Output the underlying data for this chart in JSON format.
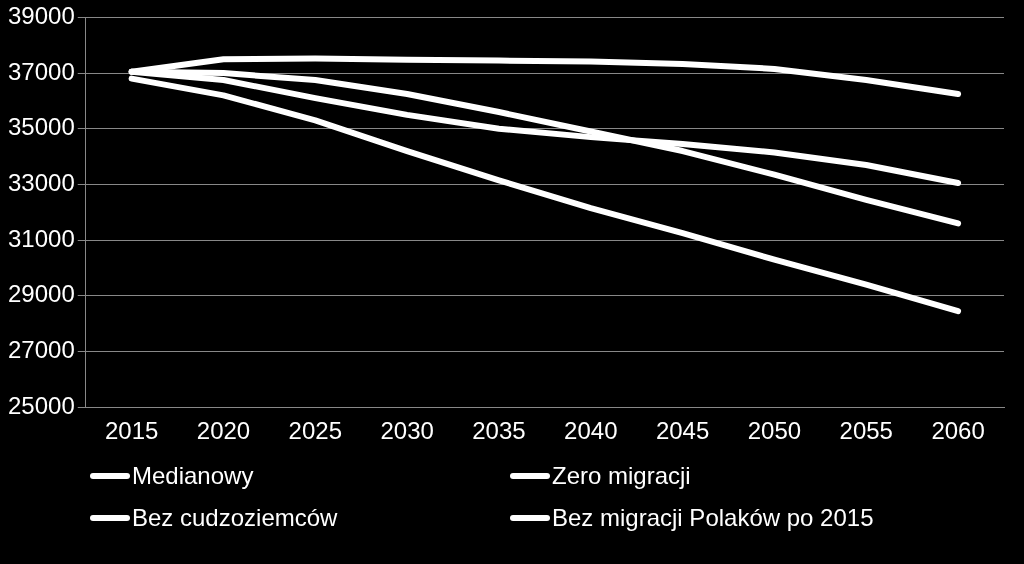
{
  "chart_data": {
    "type": "line",
    "categories": [
      "2015",
      "2020",
      "2025",
      "2030",
      "2035",
      "2040",
      "2045",
      "2050",
      "2055",
      "2060"
    ],
    "series": [
      {
        "name": "Medianowy",
        "color": "#ffffff",
        "values": [
          37050,
          37500,
          37520,
          37480,
          37450,
          37420,
          37330,
          37150,
          36750,
          36250
        ]
      },
      {
        "name": "Zero migracji",
        "color": "#ffffff",
        "values": [
          37050,
          37000,
          36750,
          36250,
          35600,
          34900,
          34200,
          33350,
          32450,
          31600
        ]
      },
      {
        "name": "Bez cudzoziemców",
        "color": "#ffffff",
        "values": [
          37050,
          36750,
          36100,
          35500,
          35000,
          34700,
          34450,
          34150,
          33700,
          33050
        ]
      },
      {
        "name": "Bez migracji Polaków po 2015",
        "color": "#ffffff",
        "values": [
          36800,
          36200,
          35300,
          34200,
          33150,
          32150,
          31250,
          30300,
          29400,
          28450
        ]
      }
    ],
    "ylim": [
      25000,
      39000
    ],
    "yticks": [
      25000,
      27000,
      29000,
      31000,
      33000,
      35000,
      37000,
      39000
    ],
    "grid": "y",
    "legend": "bottom",
    "marker": "none",
    "line_style": "solid"
  }
}
